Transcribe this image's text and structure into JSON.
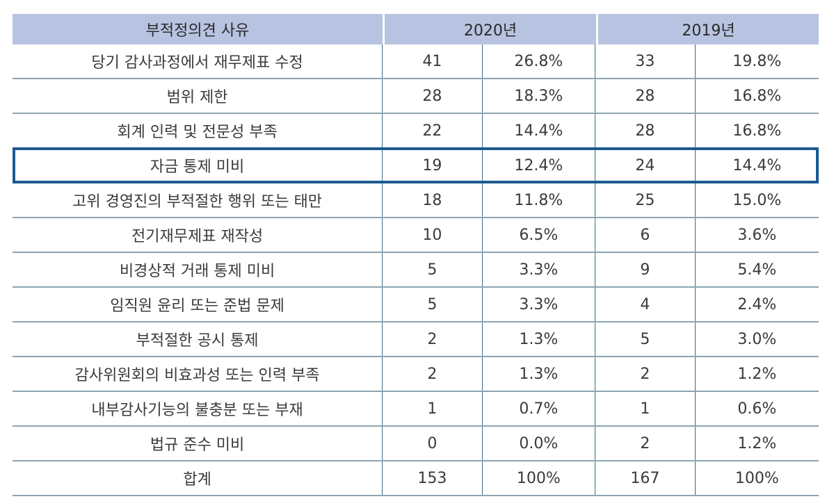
{
  "header": {
    "reason": "부적정의견 사유",
    "year1": "2020년",
    "year2": "2019년"
  },
  "rows": [
    {
      "reason": "당기 감사과정에서 재무제표 수정",
      "c2020": "41",
      "p2020": "26.8%",
      "c2019": "33",
      "p2019": "19.8%"
    },
    {
      "reason": "범위 제한",
      "c2020": "28",
      "p2020": "18.3%",
      "c2019": "28",
      "p2019": "16.8%"
    },
    {
      "reason": "회계 인력 및 전문성 부족",
      "c2020": "22",
      "p2020": "14.4%",
      "c2019": "28",
      "p2019": "16.8%"
    },
    {
      "reason": "자금 통제 미비",
      "c2020": "19",
      "p2020": "12.4%",
      "c2019": "24",
      "p2019": "14.4%",
      "highlight": true
    },
    {
      "reason": "고위 경영진의 부적절한 행위 또는 태만",
      "c2020": "18",
      "p2020": "11.8%",
      "c2019": "25",
      "p2019": "15.0%"
    },
    {
      "reason": "전기재무제표 재작성",
      "c2020": "10",
      "p2020": "6.5%",
      "c2019": "6",
      "p2019": "3.6%"
    },
    {
      "reason": "비경상적 거래 통제 미비",
      "c2020": "5",
      "p2020": "3.3%",
      "c2019": "9",
      "p2019": "5.4%"
    },
    {
      "reason": "임직원 윤리 또는 준법 문제",
      "c2020": "5",
      "p2020": "3.3%",
      "c2019": "4",
      "p2019": "2.4%"
    },
    {
      "reason": "부적절한 공시 통제",
      "c2020": "2",
      "p2020": "1.3%",
      "c2019": "5",
      "p2019": "3.0%"
    },
    {
      "reason": "감사위원회의 비효과성 또는 인력 부족",
      "c2020": "2",
      "p2020": "1.3%",
      "c2019": "2",
      "p2019": "1.2%"
    },
    {
      "reason": "내부감사기능의 불충분 또는 부재",
      "c2020": "1",
      "p2020": "0.7%",
      "c2019": "1",
      "p2019": "0.6%"
    },
    {
      "reason": "법규 준수 미비",
      "c2020": "0",
      "p2020": "0.0%",
      "c2019": "2",
      "p2019": "1.2%"
    },
    {
      "reason": "합계",
      "c2020": "153",
      "p2020": "100%",
      "c2019": "167",
      "p2019": "100%"
    }
  ],
  "colors": {
    "header_bg": "#b7c3e1",
    "highlight_border": "#1b5a8f",
    "row_border": "#8aa5b0"
  }
}
